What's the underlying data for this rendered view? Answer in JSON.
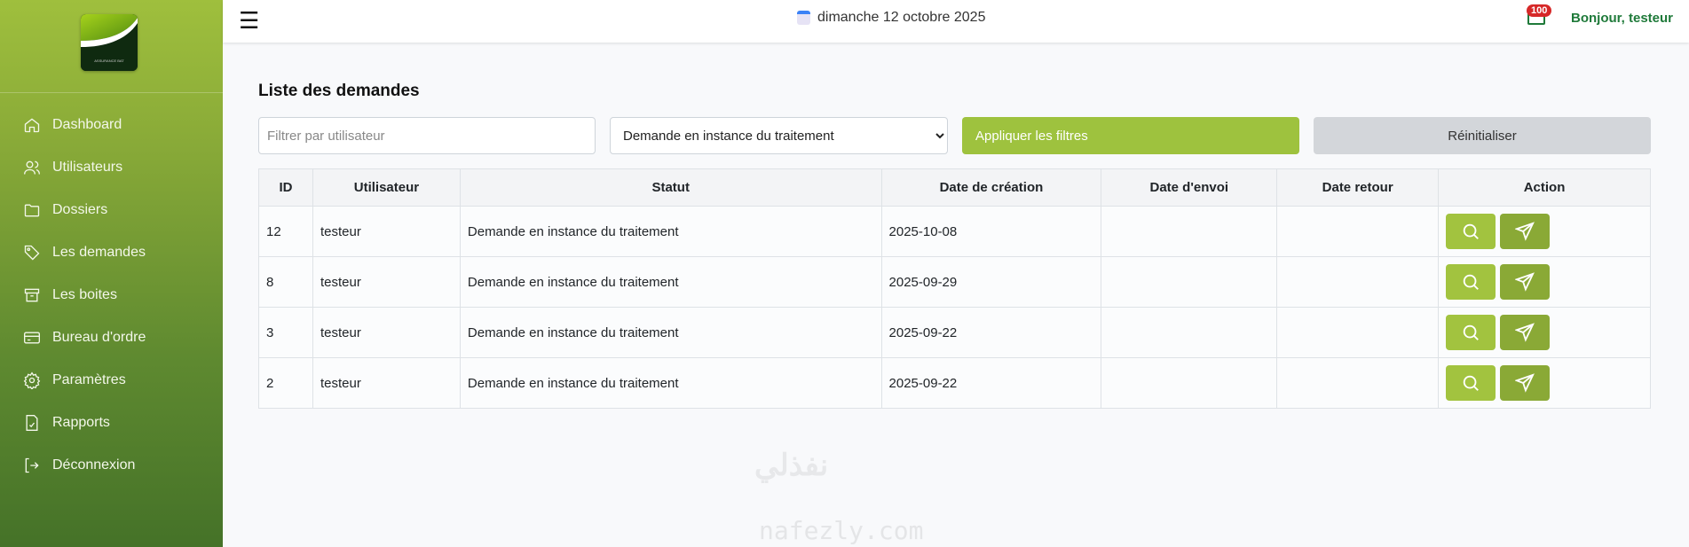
{
  "sidebar": {
    "logo_text": "ASSURANCE BAT",
    "items": [
      {
        "label": "Dashboard",
        "icon": "home-icon"
      },
      {
        "label": "Utilisateurs",
        "icon": "users-icon"
      },
      {
        "label": "Dossiers",
        "icon": "folder-icon"
      },
      {
        "label": "Les demandes",
        "icon": "tag-icon"
      },
      {
        "label": "Les boites",
        "icon": "archive-icon"
      },
      {
        "label": "Bureau d'ordre",
        "icon": "credit-card-icon"
      },
      {
        "label": "Paramètres",
        "icon": "gear-icon"
      },
      {
        "label": "Rapports",
        "icon": "file-chart-icon"
      },
      {
        "label": "Déconnexion",
        "icon": "logout-icon"
      }
    ]
  },
  "header": {
    "date": "dimanche 12 octobre 2025",
    "badge": "100",
    "greeting": "Bonjour, testeur"
  },
  "main": {
    "title": "Liste des demandes",
    "filters": {
      "user_placeholder": "Filtrer par utilisateur",
      "user_value": "",
      "status_selected": "Demande en instance du traitement",
      "apply_label": "Appliquer les filtres",
      "reset_label": "Réinitialiser"
    },
    "table": {
      "columns": [
        "ID",
        "Utilisateur",
        "Statut",
        "Date de création",
        "Date d'envoi",
        "Date retour",
        "Action"
      ],
      "rows": [
        [
          "12",
          "testeur",
          "Demande en instance du traitement",
          "2025-10-08",
          "",
          ""
        ],
        [
          "8",
          "testeur",
          "Demande en instance du traitement",
          "2025-09-29",
          "",
          ""
        ],
        [
          "3",
          "testeur",
          "Demande en instance du traitement",
          "2025-09-22",
          "",
          ""
        ],
        [
          "2",
          "testeur",
          "Demande en instance du traitement",
          "2025-09-22",
          "",
          ""
        ]
      ]
    }
  },
  "watermark": {
    "arabic": "نفذلي",
    "latin": "nafezly.com"
  },
  "colors": {
    "accent": "#9ec23e",
    "accent_dark": "#8aa936",
    "greeting": "#1f7a3a",
    "badge": "#d62828"
  }
}
